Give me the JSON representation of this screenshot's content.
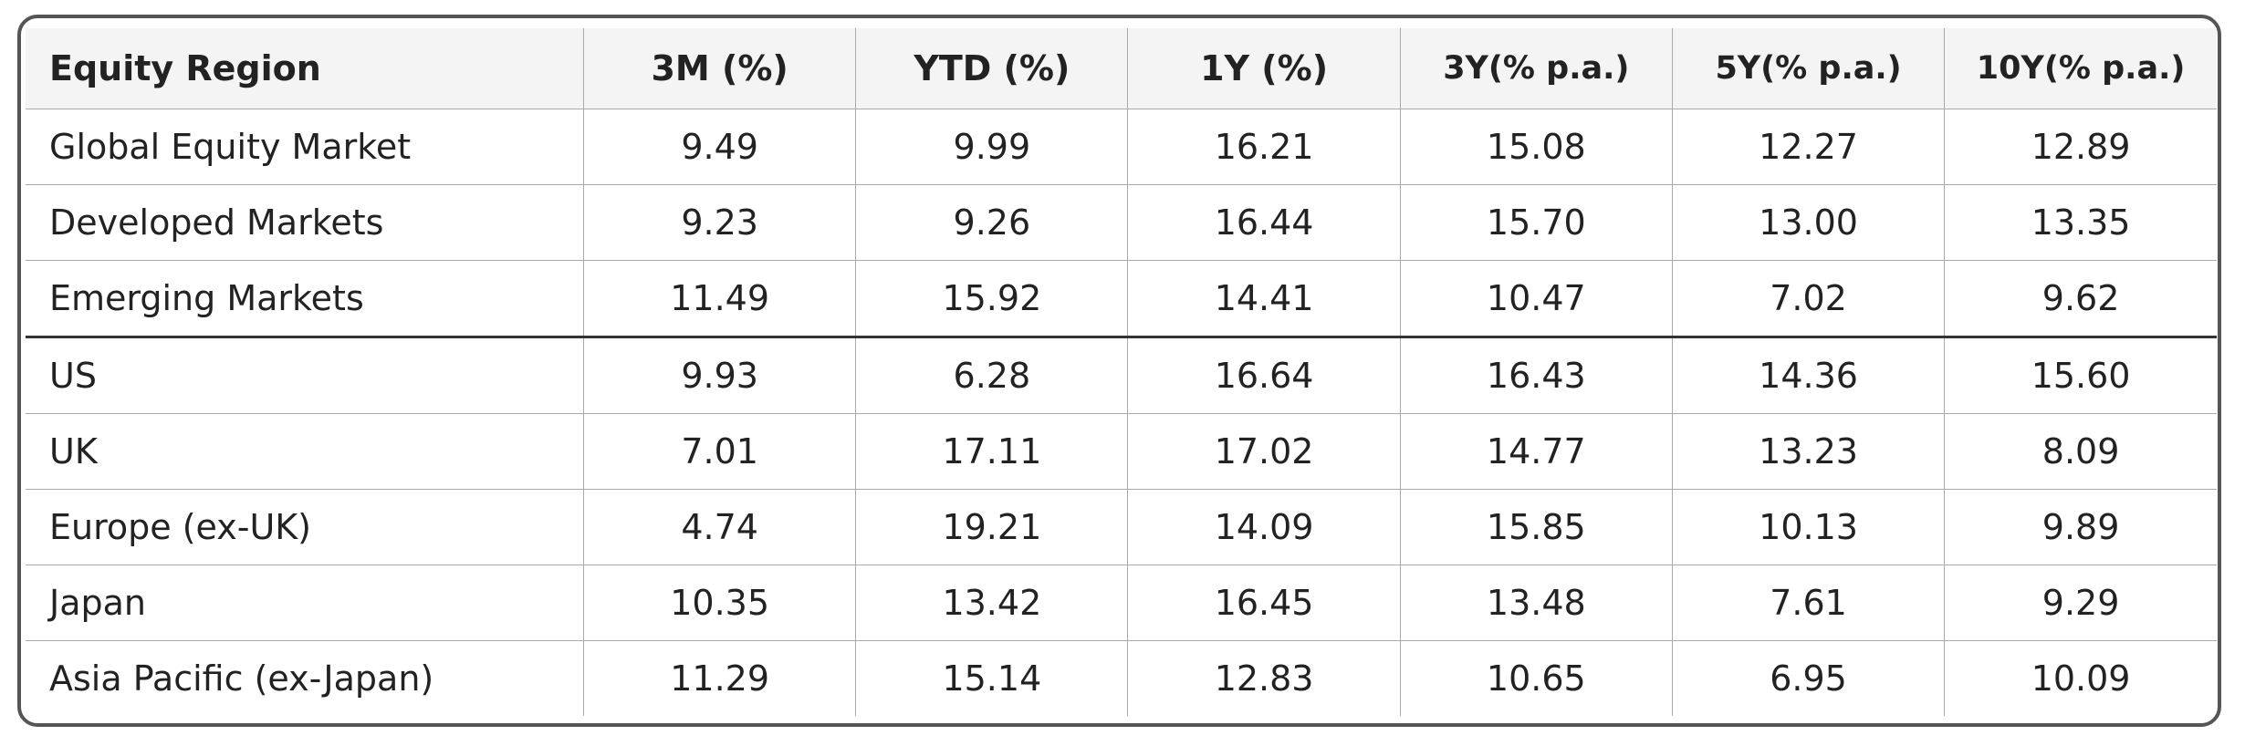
{
  "table": {
    "header": [
      "Equity Region",
      "3M (%)",
      "YTD (%)",
      "1Y (%)",
      "3Y(% p.a.)",
      "5Y(% p.a.)",
      "10Y(% p.a.)"
    ],
    "rows": [
      [
        "Global Equity Market",
        "9.49",
        "9.99",
        "16.21",
        "15.08",
        "12.27",
        "12.89"
      ],
      [
        "Developed Markets",
        "9.23",
        "9.26",
        "16.44",
        "15.70",
        "13.00",
        "13.35"
      ],
      [
        "Emerging Markets",
        "11.49",
        "15.92",
        "14.41",
        "10.47",
        "7.02",
        "9.62"
      ],
      [
        "US",
        "9.93",
        "6.28",
        "16.64",
        "16.43",
        "14.36",
        "15.60"
      ],
      [
        "UK",
        "7.01",
        "17.11",
        "17.02",
        "14.77",
        "13.23",
        "8.09"
      ],
      [
        "Europe (ex-UK)",
        "4.74",
        "19.21",
        "14.09",
        "15.85",
        "10.13",
        "9.89"
      ],
      [
        "Japan",
        "10.35",
        "13.42",
        "16.45",
        "13.48",
        "7.61",
        "9.29"
      ],
      [
        "Asia Pacific (ex-Japan)",
        "11.29",
        "15.14",
        "12.83",
        "10.65",
        "6.95",
        "10.09"
      ]
    ]
  }
}
